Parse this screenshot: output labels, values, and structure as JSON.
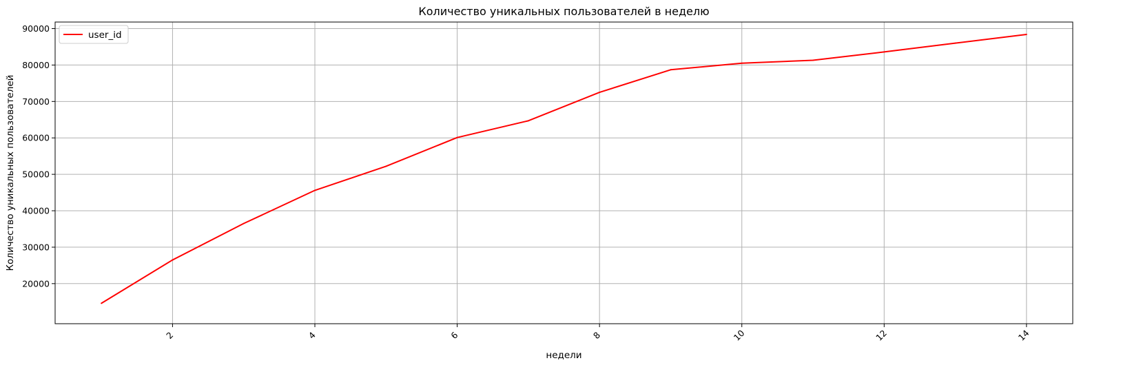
{
  "chart_data": {
    "type": "line",
    "title": "Количество уникальных пользователей в неделю",
    "xlabel": "недели",
    "ylabel": "Количество уникальных пользователей",
    "xlim": [
      0.35,
      14.65
    ],
    "ylim": [
      9000,
      91800
    ],
    "x_ticks": [
      2,
      4,
      6,
      8,
      10,
      12,
      14
    ],
    "x_tick_labels": [
      "2",
      "4",
      "6",
      "8",
      "10",
      "12",
      "14"
    ],
    "x_tick_rotation": 45,
    "y_ticks": [
      20000,
      30000,
      40000,
      50000,
      60000,
      70000,
      80000,
      90000
    ],
    "y_tick_labels": [
      "20000",
      "30000",
      "40000",
      "50000",
      "60000",
      "70000",
      "80000",
      "90000"
    ],
    "grid": true,
    "legend_position": "upper-left",
    "series": [
      {
        "name": "user_id",
        "color": "#ff0000",
        "x": [
          1,
          2,
          3,
          4,
          5,
          6,
          7,
          8,
          9,
          10,
          11,
          12,
          13,
          14
        ],
        "values": [
          14600,
          26500,
          36500,
          45600,
          52200,
          60100,
          64700,
          72500,
          78700,
          80500,
          81300,
          83600,
          86000,
          88400
        ]
      }
    ]
  }
}
